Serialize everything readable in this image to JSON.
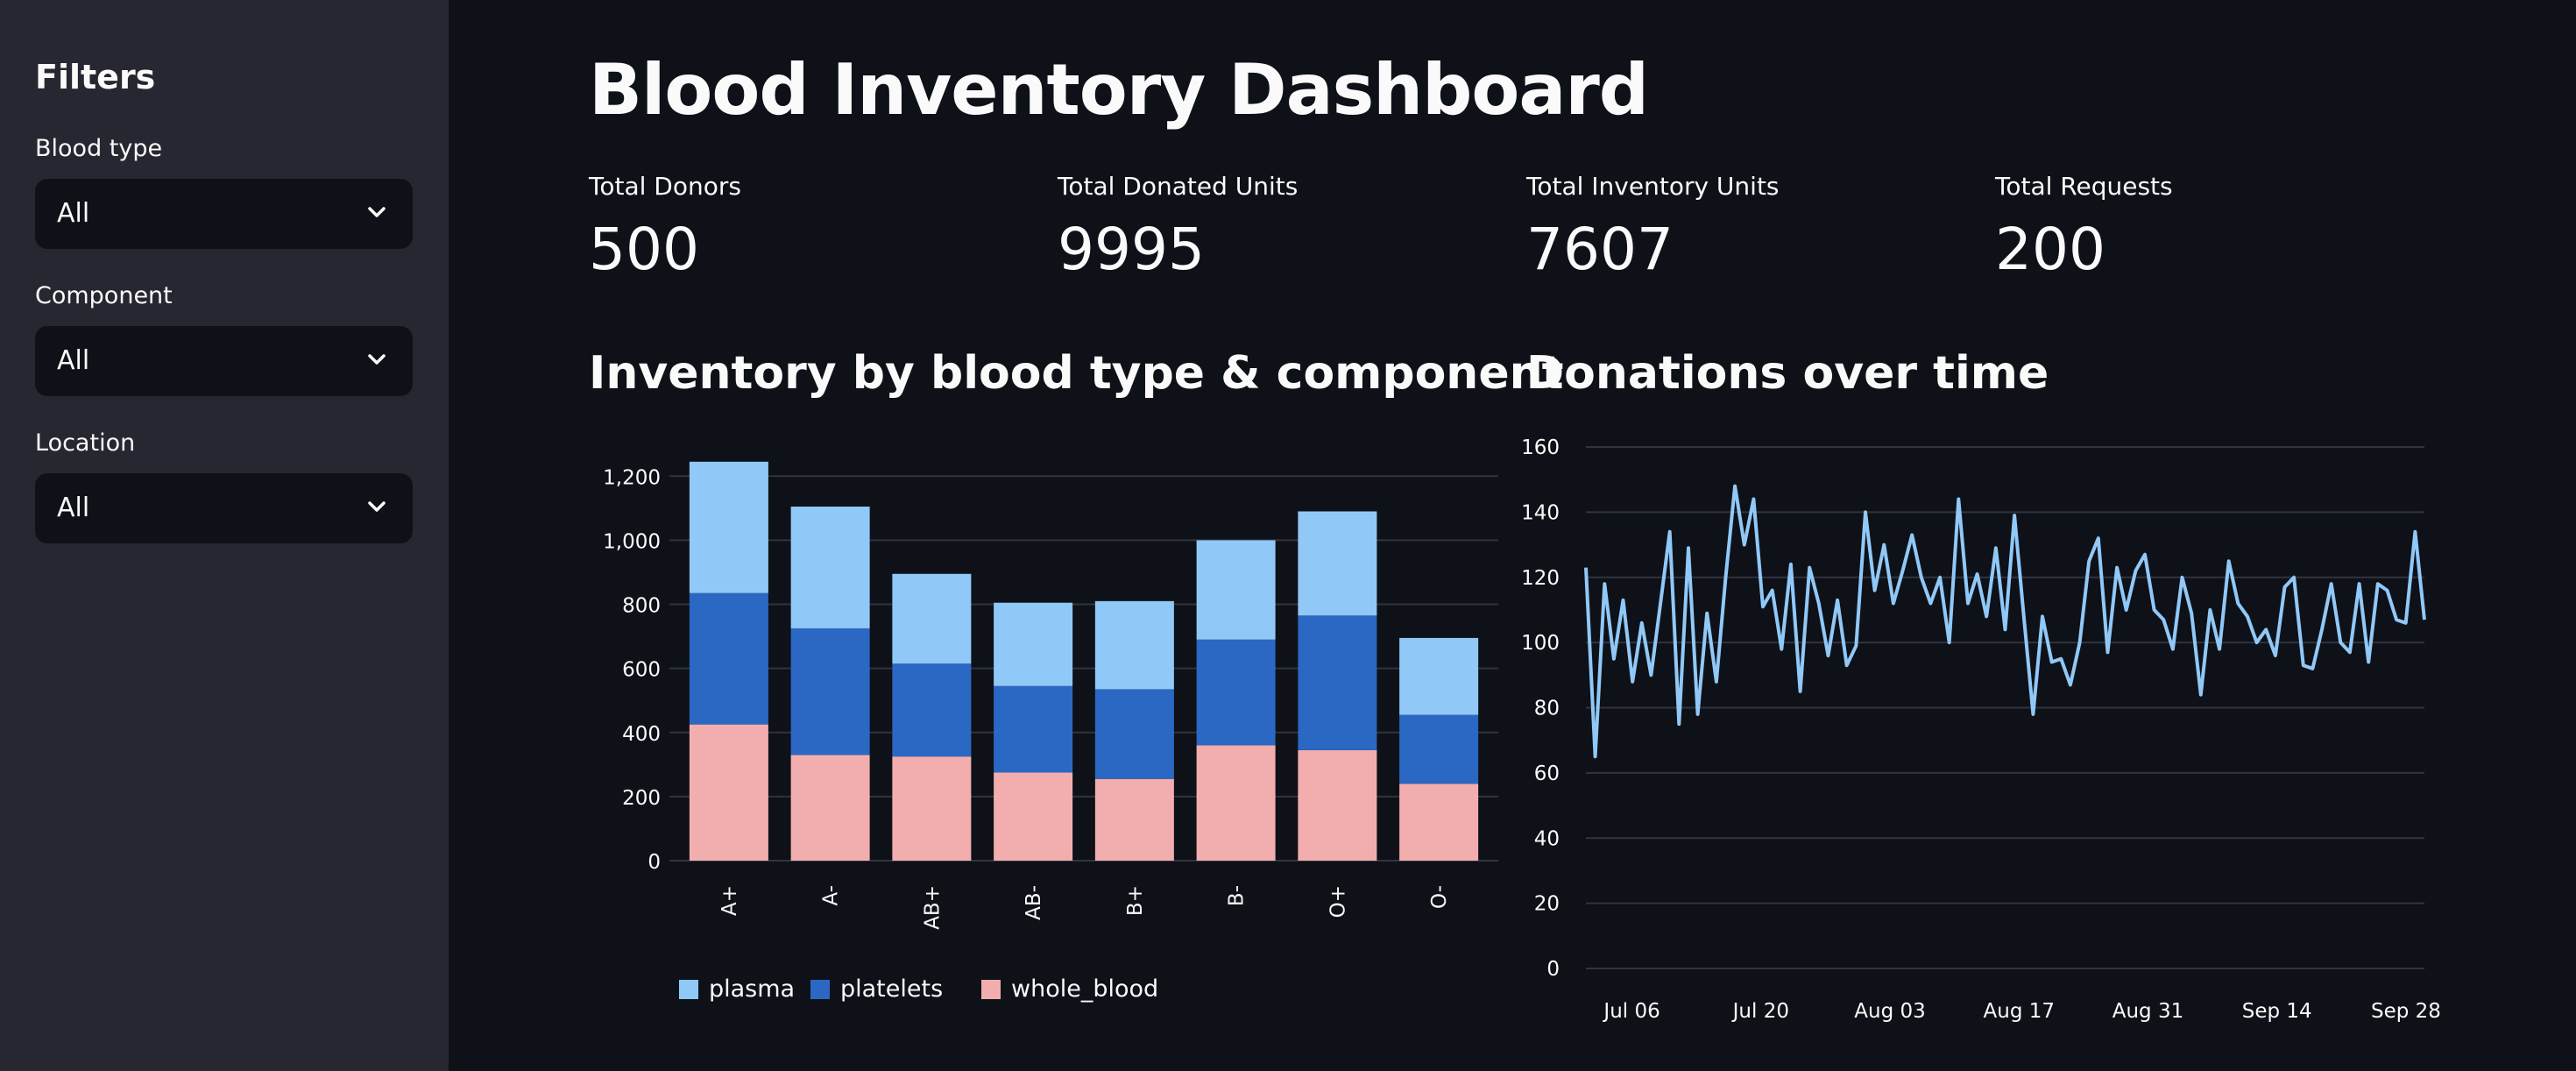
{
  "sidebar": {
    "title": "Filters",
    "filters": [
      {
        "label": "Blood type",
        "value": "All"
      },
      {
        "label": "Component",
        "value": "All"
      },
      {
        "label": "Location",
        "value": "All"
      }
    ]
  },
  "main": {
    "title": "Blood Inventory Dashboard",
    "metrics": [
      {
        "label": "Total Donors",
        "value": "500"
      },
      {
        "label": "Total Donated Units",
        "value": "9995"
      },
      {
        "label": "Total Inventory Units",
        "value": "7607"
      },
      {
        "label": "Total Requests",
        "value": "200"
      }
    ],
    "inventory_chart_title": "Inventory by blood type & component",
    "donations_chart_title": "Donations over time"
  },
  "colors": {
    "background": "#0e1117",
    "sidebar": "#262730",
    "plasma": "#90c8f8",
    "platelets": "#2b68c4",
    "whole_blood": "#f2aeae",
    "line": "#90c8f8"
  },
  "chart_data": [
    {
      "type": "bar",
      "stacked": true,
      "categories": [
        "A+",
        "A-",
        "AB+",
        "AB-",
        "B+",
        "B-",
        "O+",
        "O-"
      ],
      "series": [
        {
          "name": "whole_blood",
          "values": [
            425,
            330,
            325,
            275,
            255,
            360,
            345,
            240
          ]
        },
        {
          "name": "platelets",
          "values": [
            410,
            395,
            290,
            270,
            280,
            330,
            420,
            215
          ]
        },
        {
          "name": "plasma",
          "values": [
            410,
            380,
            280,
            260,
            275,
            310,
            325,
            240
          ]
        }
      ],
      "yticks": [
        0,
        200,
        400,
        600,
        800,
        1000,
        1200
      ],
      "ytick_labels": [
        "0",
        "200",
        "400",
        "600",
        "800",
        "1,000",
        "1,200"
      ],
      "ylim": [
        0,
        1250
      ],
      "legend": [
        "plasma",
        "platelets",
        "whole_blood"
      ],
      "legend_position": "bottom",
      "grid": true
    },
    {
      "type": "line",
      "x_start": "2024-07-01",
      "x_end": "2024-09-30",
      "y": [
        123,
        65,
        118,
        95,
        113,
        88,
        106,
        90,
        112,
        134,
        75,
        129,
        78,
        109,
        88,
        120,
        148,
        130,
        144,
        111,
        116,
        98,
        124,
        85,
        123,
        112,
        96,
        113,
        93,
        99,
        140,
        116,
        130,
        112,
        122,
        133,
        120,
        112,
        120,
        100,
        144,
        112,
        121,
        108,
        129,
        104,
        139,
        108,
        78,
        108,
        94,
        95,
        87,
        100,
        125,
        132,
        97,
        123,
        110,
        122,
        127,
        110,
        107,
        98,
        120,
        109,
        84,
        110,
        98,
        125,
        112,
        108,
        100,
        104,
        96,
        117,
        120,
        93,
        92,
        104,
        118,
        100,
        97,
        118,
        94,
        118,
        116,
        107,
        106,
        134,
        107
      ],
      "x_ticks": [
        "Jul 06",
        "Jul 20",
        "Aug 03",
        "Aug 17",
        "Aug 31",
        "Sep 14",
        "Sep 28"
      ],
      "yticks": [
        0,
        20,
        40,
        60,
        80,
        100,
        120,
        140,
        160
      ],
      "ylim": [
        0,
        160
      ],
      "grid": true
    }
  ]
}
